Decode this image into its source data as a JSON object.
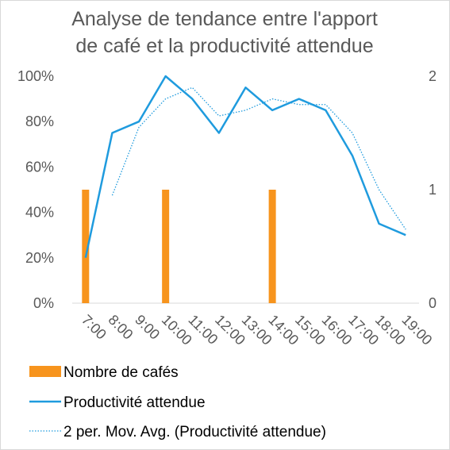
{
  "chart_data": {
    "type": "bar+line",
    "title_lines": [
      "Analyse de tendance entre l'apport",
      "de café et la productivité attendue"
    ],
    "categories": [
      "7:00",
      "8:00",
      "9:00",
      "10:00",
      "11:00",
      "12:00",
      "13:00",
      "14:00",
      "15:00",
      "16:00",
      "17:00",
      "18:00",
      "19:00"
    ],
    "series": [
      {
        "name": "Nombre de cafés",
        "type": "bar",
        "axis": "secondary",
        "color": "#f7941d",
        "values": [
          1,
          0,
          0,
          1,
          0,
          0,
          0,
          1,
          0,
          0,
          0,
          0,
          0
        ]
      },
      {
        "name": "Productivité attendue",
        "type": "line",
        "axis": "primary",
        "color": "#1f9bde",
        "values": [
          20,
          75,
          80,
          100,
          90,
          75,
          95,
          85,
          90,
          85,
          65,
          35,
          30
        ]
      },
      {
        "name": "2 per. Mov. Avg. (Productivité attendue)",
        "type": "trendline-dotted",
        "axis": "primary",
        "color": "#1f9bde",
        "values": [
          null,
          47.5,
          77.5,
          90,
          95,
          82.5,
          85,
          90,
          87.5,
          87.5,
          75,
          50,
          32.5
        ]
      }
    ],
    "y_primary": {
      "ticks": [
        "0%",
        "20%",
        "40%",
        "60%",
        "80%",
        "100%"
      ],
      "min": 0,
      "max": 100
    },
    "y_secondary": {
      "ticks": [
        "0",
        "1",
        "2"
      ],
      "min": 0,
      "max": 2
    },
    "grid": false,
    "legend": "bottom"
  }
}
